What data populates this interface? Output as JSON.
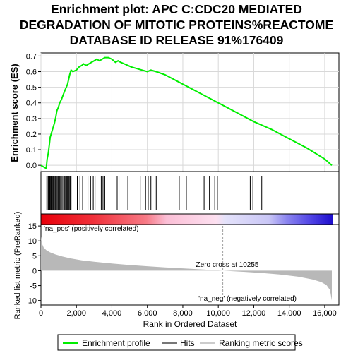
{
  "title_lines": [
    "Enrichment plot: APC C:CDC20 MEDIATED",
    "DEGRADATION OF MITOTIC PROTEINS%REACTOME",
    "DATABASE ID RELEASE 91%176409"
  ],
  "colors": {
    "enrichment_line": "#00ee00",
    "hits": "#000000",
    "ranked_fill": "#b8b8b8",
    "pos_label": "#ff0000",
    "neg_label": "#0000ff",
    "zero_cross_line": "#a0a0a0"
  },
  "chart_data": [
    {
      "type": "line",
      "ylabel": "Enrichment score (ES)",
      "ylim": [
        -0.04,
        0.72
      ],
      "yticks": [
        0.0,
        0.1,
        0.2,
        0.3,
        0.4,
        0.5,
        0.6,
        0.7
      ],
      "ytick_labels": [
        "0.0",
        "0.1",
        "0.2",
        "0.3",
        "0.4",
        "0.5",
        "0.6",
        "0.7"
      ],
      "xlim": [
        0,
        16800
      ],
      "grid": true,
      "series": [
        {
          "name": "Enrichment profile",
          "x": [
            0,
            300,
            350,
            420,
            480,
            520,
            600,
            680,
            760,
            840,
            900,
            980,
            1060,
            1150,
            1250,
            1350,
            1430,
            1500,
            1560,
            1620,
            1700,
            1800,
            2000,
            2150,
            2300,
            2400,
            2550,
            2700,
            2850,
            3000,
            3150,
            3300,
            3450,
            3600,
            3800,
            4000,
            4200,
            4350,
            4500,
            4700,
            4900,
            5100,
            5400,
            5700,
            6000,
            6200,
            6500,
            7000,
            8000,
            9000,
            10000,
            11000,
            12000,
            13000,
            14000,
            15000,
            16000,
            16400
          ],
          "y": [
            0.0,
            -0.02,
            0.04,
            0.08,
            0.14,
            0.18,
            0.21,
            0.24,
            0.27,
            0.31,
            0.35,
            0.37,
            0.4,
            0.42,
            0.45,
            0.48,
            0.5,
            0.52,
            0.55,
            0.58,
            0.61,
            0.6,
            0.61,
            0.63,
            0.64,
            0.65,
            0.64,
            0.65,
            0.66,
            0.67,
            0.68,
            0.67,
            0.68,
            0.69,
            0.69,
            0.68,
            0.66,
            0.67,
            0.66,
            0.65,
            0.64,
            0.63,
            0.62,
            0.61,
            0.6,
            0.61,
            0.6,
            0.58,
            0.52,
            0.46,
            0.4,
            0.34,
            0.28,
            0.23,
            0.17,
            0.11,
            0.04,
            0.0
          ]
        }
      ]
    },
    {
      "type": "scatter",
      "name": "Hits",
      "hits_x": [
        330,
        400,
        440,
        480,
        510,
        550,
        580,
        610,
        650,
        700,
        740,
        790,
        830,
        870,
        920,
        970,
        1010,
        1060,
        1110,
        1160,
        1230,
        1290,
        1340,
        1390,
        1440,
        1480,
        1520,
        1560,
        1600,
        1650,
        1700,
        2050,
        2200,
        2350,
        2650,
        2800,
        2950,
        3050,
        3400,
        3500,
        3600,
        4300,
        4400,
        4900,
        5600,
        5900,
        6050,
        6200,
        6500,
        7800,
        8200,
        9200,
        9500,
        9800,
        9950,
        11800,
        11950,
        12450
      ]
    },
    {
      "type": "area",
      "ylabel": "Ranked list metric (PreRanked)",
      "xlabel": "Rank in Ordered Dataset",
      "ylim": [
        -11.5,
        15.5
      ],
      "yticks": [
        -10,
        -5,
        0,
        5,
        10,
        15
      ],
      "ytick_labels": [
        "-10",
        "-5",
        "0",
        "5",
        "10",
        "15"
      ],
      "xticks": [
        0,
        2000,
        4000,
        6000,
        8000,
        10000,
        12000,
        14000,
        16000
      ],
      "xtick_labels": [
        "0",
        "2,000",
        "4,000",
        "6,000",
        "8,000",
        "10,000",
        "12,000",
        "14,000",
        "16,000"
      ],
      "xlim": [
        0,
        16800
      ],
      "zero_cross": 10255,
      "x": [
        0,
        50,
        150,
        300,
        500,
        800,
        1200,
        1700,
        2300,
        3000,
        4000,
        5000,
        6000,
        7000,
        8000,
        9000,
        10255,
        11500,
        12500,
        13500,
        14500,
        15300,
        15800,
        16100,
        16300,
        16400
      ],
      "values": [
        11.5,
        9.2,
        7.8,
        6.9,
        6.2,
        5.5,
        4.8,
        4.1,
        3.5,
        3.0,
        2.4,
        1.9,
        1.5,
        1.1,
        0.8,
        0.45,
        0.0,
        -0.4,
        -0.8,
        -1.3,
        -2.0,
        -2.9,
        -3.8,
        -4.8,
        -6.5,
        -10.0
      ],
      "annotations": {
        "pos": "'na_pos' (positively correlated)",
        "neg": "'na_neg' (negatively correlated)",
        "zero": "Zero cross at 10255"
      }
    }
  ],
  "legend": {
    "items": [
      {
        "label": "Enrichment profile"
      },
      {
        "label": "Hits"
      },
      {
        "label": "Ranking metric scores"
      }
    ]
  }
}
